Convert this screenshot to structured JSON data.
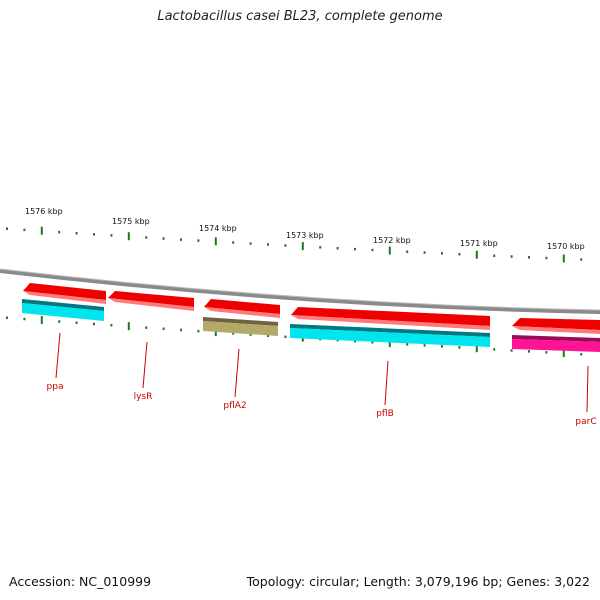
{
  "title": "Lactobacillus casei BL23, complete genome",
  "footer": {
    "accession": "Accession: NC_010999",
    "summary": "Topology: circular; Length: 3,079,196 bp; Genes: 3,022"
  },
  "ruler_labels": [
    "1576 kbp",
    "1575 kbp",
    "1574 kbp",
    "1573 kbp",
    "1572 kbp",
    "1571 kbp",
    "1570 kbp"
  ],
  "colors": {
    "backbone": "#888888",
    "tick": "#1a7a1a",
    "forward_gene": "#ee0000",
    "cds_cyan": "#00e5ee",
    "cds_olive": "#b5a96a",
    "cds_pink": "#ff1493",
    "label": "#cc0000"
  },
  "features": [
    {
      "type": "gene",
      "strand": "reverse",
      "color": "forward_gene"
    },
    {
      "type": "gene",
      "strand": "reverse",
      "color": "forward_gene"
    },
    {
      "type": "gene",
      "strand": "reverse",
      "color": "forward_gene"
    },
    {
      "type": "gene",
      "strand": "reverse",
      "color": "forward_gene"
    },
    {
      "type": "gene",
      "strand": "reverse",
      "color": "forward_gene"
    },
    {
      "type": "CDS",
      "color": "cds_cyan"
    },
    {
      "type": "CDS",
      "color": "cds_olive"
    },
    {
      "type": "CDS",
      "color": "cds_cyan"
    },
    {
      "type": "CDS",
      "color": "cds_pink"
    }
  ],
  "gene_labels": [
    "ppa",
    "lysR",
    "pflA2",
    "pflB",
    "parC"
  ]
}
